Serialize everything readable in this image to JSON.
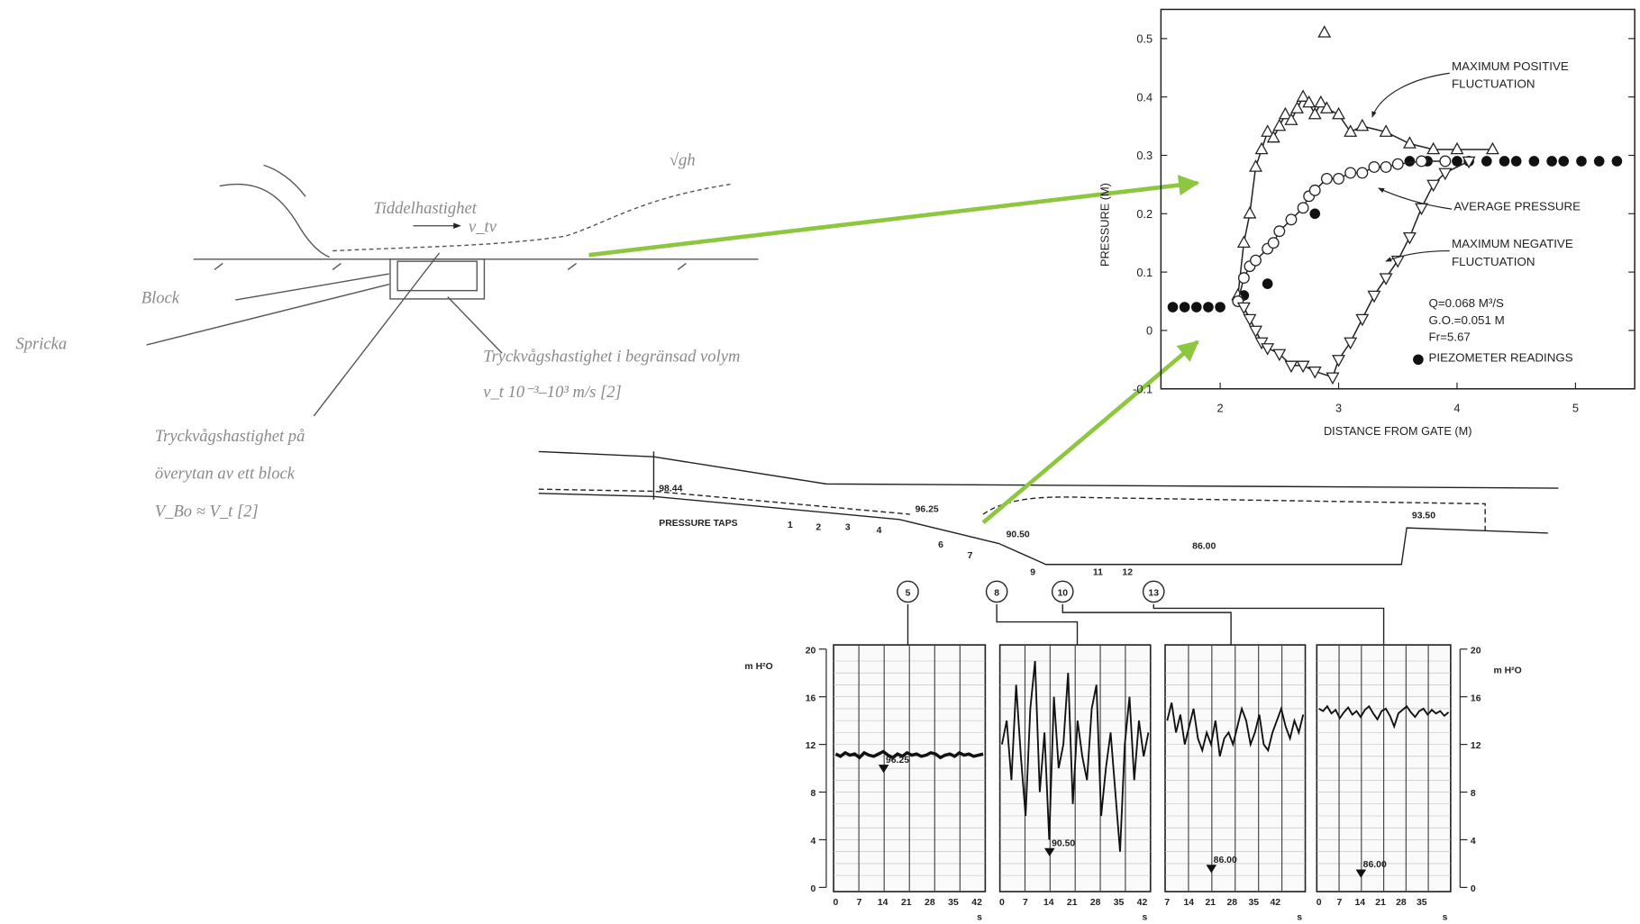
{
  "sketch": {
    "flow_label": "Tiddelhastighet",
    "flow_symbol": "v_tv",
    "wave_symbol": "√gh",
    "block": "Block",
    "crack": "Spricka",
    "inner_line1": "Tryckvågshastighet i begränsad volym",
    "inner_line2": "v_t 10⁻³–10³ m/s  [2]",
    "surface_line1": "Tryckvågshastighet på",
    "surface_line2": "överytan av ett block",
    "surface_line3": "V_Bo ≈ V_t            [2]"
  },
  "chart_data": {
    "type": "scatter",
    "x_label": "DISTANCE FROM GATE (M)",
    "y_label": "PRESSURE (M)",
    "xlim": [
      1.5,
      5.5
    ],
    "xticks": [
      2,
      3,
      4,
      5
    ],
    "ylim": [
      -0.1,
      0.55
    ],
    "yticks": [
      -0.1,
      0,
      0.1,
      0.2,
      0.3,
      0.4,
      0.5
    ],
    "annotations": [
      "Q=0.068 M³/S",
      "G.O.=0.051 M",
      "Fr=5.67"
    ],
    "series": [
      {
        "name": "PIEZOMETER READINGS",
        "marker": "circle-filled",
        "line": false,
        "color": "#111",
        "x": [
          1.6,
          1.7,
          1.8,
          1.9,
          2.0,
          2.2,
          2.4,
          2.8,
          3.0,
          3.6,
          3.75,
          3.9,
          4.0,
          4.1,
          4.25,
          4.4,
          4.5,
          4.65,
          4.8,
          4.9,
          5.05,
          5.2,
          5.35
        ],
        "values": [
          0.04,
          0.04,
          0.04,
          0.04,
          0.04,
          0.06,
          0.08,
          0.2,
          0.26,
          0.29,
          0.29,
          0.29,
          0.29,
          0.29,
          0.29,
          0.29,
          0.29,
          0.29,
          0.29,
          0.29,
          0.29,
          0.29,
          0.29
        ]
      },
      {
        "name": "MAXIMUM POSITIVE FLUCTUATION",
        "marker": "triangle-up",
        "line": true,
        "color": "#222",
        "x": [
          2.88,
          null,
          2.15,
          2.2,
          2.25,
          2.3,
          2.35,
          2.4,
          2.45,
          2.5,
          2.55,
          2.6,
          2.65,
          2.7,
          2.75,
          2.8,
          2.85,
          2.9,
          3.0,
          3.1,
          3.2,
          3.4,
          3.6,
          3.8,
          4.0,
          4.3
        ],
        "values": [
          0.51,
          null,
          0.06,
          0.15,
          0.2,
          0.28,
          0.31,
          0.34,
          0.33,
          0.35,
          0.37,
          0.36,
          0.38,
          0.4,
          0.39,
          0.37,
          0.39,
          0.38,
          0.37,
          0.34,
          0.35,
          0.34,
          0.32,
          0.31,
          0.31,
          0.31
        ]
      },
      {
        "name": "AVERAGE PRESSURE",
        "marker": "circle-open",
        "line": true,
        "color": "#222",
        "x": [
          2.15,
          2.2,
          2.25,
          2.3,
          2.4,
          2.45,
          2.5,
          2.6,
          2.7,
          2.75,
          2.8,
          2.9,
          3.0,
          3.1,
          3.2,
          3.3,
          3.4,
          3.5,
          3.7,
          3.9
        ],
        "values": [
          0.05,
          0.09,
          0.11,
          0.12,
          0.14,
          0.15,
          0.17,
          0.19,
          0.21,
          0.23,
          0.24,
          0.26,
          0.26,
          0.27,
          0.27,
          0.28,
          0.28,
          0.285,
          0.29,
          0.29
        ]
      },
      {
        "name": "MAXIMUM NEGATIVE FLUCTUATION",
        "marker": "triangle-down",
        "line": true,
        "color": "#222",
        "x": [
          2.2,
          2.25,
          2.3,
          2.35,
          2.4,
          2.5,
          2.6,
          2.7,
          2.8,
          2.95,
          3.0,
          3.1,
          3.2,
          3.3,
          3.4,
          3.5,
          3.6,
          3.7,
          3.8,
          3.9,
          4.1
        ],
        "values": [
          0.04,
          0.02,
          0.0,
          -0.02,
          -0.03,
          -0.04,
          -0.06,
          -0.06,
          -0.07,
          -0.08,
          -0.05,
          -0.02,
          0.02,
          0.06,
          0.09,
          0.12,
          0.16,
          0.21,
          0.25,
          0.27,
          0.29
        ]
      }
    ]
  },
  "profile": {
    "elevations": [
      "98.44",
      "96.25",
      "90.50",
      "86.00",
      "93.50"
    ],
    "taps_label": "PRESSURE TAPS",
    "taps": [
      "1",
      "2",
      "3",
      "4",
      "6",
      "7",
      "9",
      "11",
      "12"
    ],
    "gauges": [
      "5",
      "8",
      "10",
      "13"
    ]
  },
  "strip_charts": {
    "unit": "m H²O",
    "time_unit": "s",
    "ylim": [
      0,
      20
    ],
    "yticks": [
      0,
      4,
      8,
      12,
      16,
      20
    ],
    "panels": [
      {
        "marker": "96.25",
        "times": [
          0,
          7,
          14,
          21,
          28,
          35,
          42
        ],
        "values": [
          11.2,
          11.0,
          11.3,
          11.1,
          11.2,
          10.9,
          11.3,
          11.1,
          11.0,
          11.2,
          11.4,
          11.1,
          10.9,
          11.2,
          11.0,
          11.3,
          11.1,
          11.2,
          11.0,
          11.1,
          11.3,
          11.2,
          10.9,
          11.1,
          11.2,
          11.0,
          11.3,
          11.1,
          11.2,
          11.0,
          11.1,
          11.2
        ]
      },
      {
        "marker": "90.50",
        "times": [
          0,
          7,
          14,
          21,
          28,
          35,
          42
        ],
        "values": [
          12,
          14,
          9,
          17,
          11,
          6,
          15,
          19,
          8,
          13,
          4,
          16,
          10,
          12,
          18,
          7,
          14,
          11,
          9,
          15,
          17,
          6,
          10,
          13,
          8,
          3,
          12,
          16,
          9,
          14,
          11,
          13
        ]
      },
      {
        "marker": "86.00",
        "times": [
          7,
          14,
          21,
          28,
          35,
          42
        ],
        "values": [
          14,
          15.5,
          13,
          14.5,
          12,
          13.5,
          15,
          12.5,
          11.5,
          13,
          12,
          14,
          11,
          12.5,
          13,
          12,
          13.5,
          15,
          14,
          12,
          13,
          14.5,
          12,
          11.5,
          13,
          14,
          15,
          13.5,
          12.5,
          14,
          13,
          14.5
        ]
      },
      {
        "marker": "86.00",
        "times": [
          0,
          7,
          14,
          21,
          28,
          35
        ],
        "values": [
          15,
          14.8,
          15.2,
          14.6,
          14.9,
          14.2,
          14.7,
          15.1,
          14.5,
          14.8,
          14.3,
          14.9,
          15.2,
          14.6,
          14.1,
          14.8,
          15,
          14.4,
          13.5,
          14.6,
          14.9,
          15.2,
          14.7,
          14.3,
          14.8,
          15,
          14.5,
          14.9,
          14.6,
          14.8,
          14.4,
          14.7
        ]
      }
    ]
  }
}
